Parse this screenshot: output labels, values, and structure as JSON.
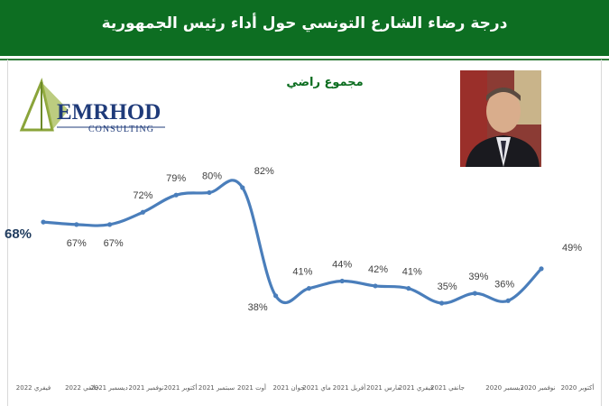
{
  "header": {
    "title": "درجة رضاء الشارع التونسي حول أداء رئيس الجمهورية"
  },
  "subtitle": "مجموع راضي",
  "logo": {
    "name": "EMRHOD",
    "tagline": "CONSULTING"
  },
  "colors": {
    "header_bg": "#0d6e22",
    "subtitle": "#0b6d1f",
    "line": "#4a7ebb",
    "label": "#404040",
    "first_label": "#1f3b5e"
  },
  "chart_data": {
    "type": "line",
    "title": "مجموع راضي",
    "xlabel": "",
    "ylabel": "",
    "ylim": [
      30,
      85
    ],
    "grid": false,
    "categories": [
      "فيفري 2022",
      "جانفي 2022",
      "ديسمبر 2021",
      "نوفمبر 2021",
      "أكتوبر 2021",
      "سبتمبر 2021",
      "أوت 2021",
      "جوان 2021",
      "ماي 2021",
      "أفريل 2021",
      "مارس 2021",
      "فيفري 2021",
      "جانفي 2021",
      "ديسمبر 2020",
      "نوفمبر 2020",
      "أكتوبر 2020"
    ],
    "x_tick_labels": [
      "فيفري 2022",
      "جانفي 2022",
      "ديسمبر 2021",
      "نوفمبر 2021",
      "أكتوبر 2021",
      "سبتمبر 2021",
      "أوت 2021",
      "جوان 2021",
      "ماي 2021",
      "أفريل 2021",
      "مارس 2021",
      "فيفري 2021",
      "جانفي 2021",
      "ديسمبر 2020",
      "نوفمبر 2020",
      "أكتوبر 2020"
    ],
    "series": [
      {
        "values": [
          68,
          67,
          67,
          72,
          79,
          80,
          82,
          38,
          41,
          44,
          42,
          41,
          35,
          39,
          36,
          49
        ]
      }
    ],
    "data_labels": [
      "68%",
      "67%",
      "67%",
      "72%",
      "79%",
      "80%",
      "82%",
      "38%",
      "41%",
      "44%",
      "42%",
      "41%",
      "35%",
      "39%",
      "36%",
      "49%"
    ]
  }
}
